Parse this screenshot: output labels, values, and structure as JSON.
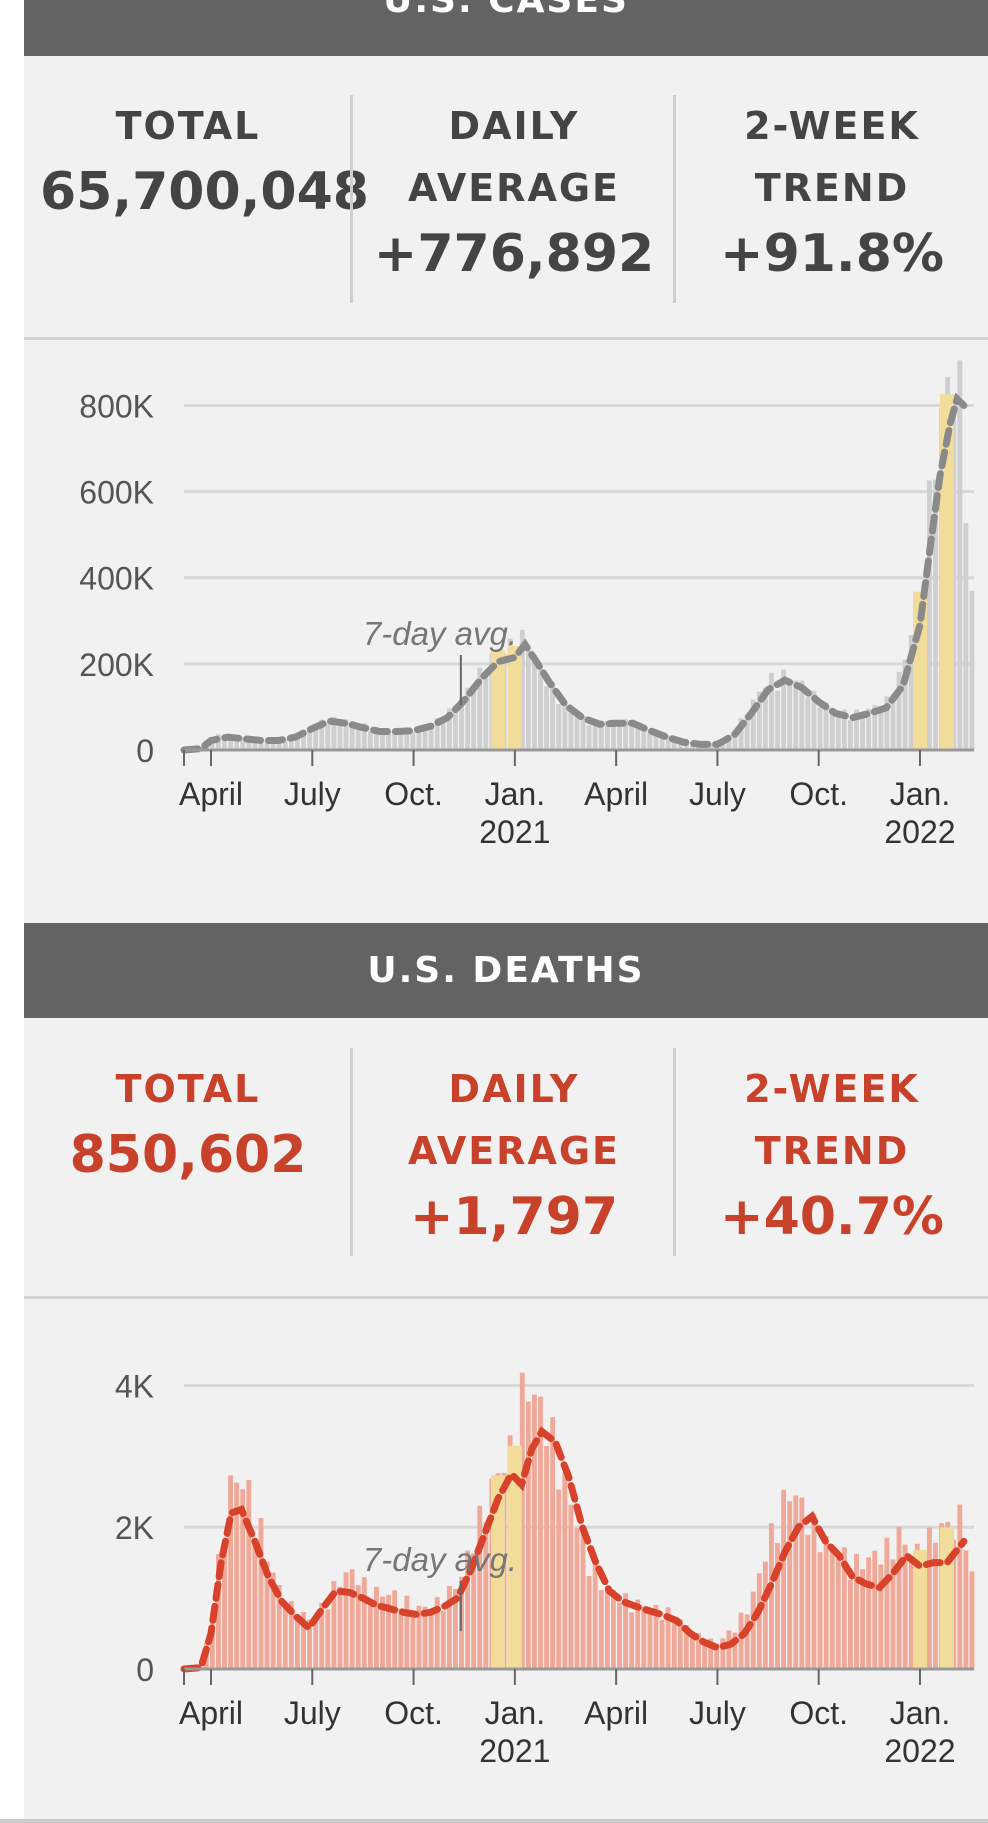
{
  "cases": {
    "header": "U.S. CASES",
    "total_label": "TOTAL",
    "total_value": "65,700,048",
    "daily_label_1": "DAILY",
    "daily_label_2": "AVERAGE",
    "daily_value": "+776,892",
    "trend_label_1": "2-WEEK",
    "trend_label_2": "TREND",
    "trend_value": "+91.8%"
  },
  "deaths": {
    "header": "U.S. DEATHS",
    "total_label": "TOTAL",
    "total_value": "850,602",
    "daily_label_1": "DAILY",
    "daily_label_2": "AVERAGE",
    "daily_value": "+1,797",
    "trend_label_1": "2-WEEK",
    "trend_label_2": "TREND",
    "trend_value": "+40.7%"
  },
  "colors": {
    "cases_bar": "#cfcfcf",
    "cases_line": "#8a8a8a",
    "deaths_bar": "#f0a898",
    "deaths_line": "#d8412a",
    "highlight": "#f2dc9a",
    "grid": "#d8d8d8",
    "axis": "#555555"
  },
  "chart_data": [
    {
      "type": "bar",
      "title": "",
      "annotation": "7-day avg.",
      "ylim": [
        0,
        880000
      ],
      "yticks": [
        0,
        200000,
        400000,
        600000,
        800000
      ],
      "ytick_labels": [
        "0",
        "200K",
        "400K",
        "600K",
        "800K"
      ],
      "x_ticks": [
        "April",
        "July",
        "Oct.",
        "Jan.",
        "April",
        "July",
        "Oct.",
        "Jan."
      ],
      "x_ticks_sub": [
        "",
        "",
        "",
        "2021",
        "",
        "",
        "",
        "2022"
      ],
      "x_range_months": [
        -0.8,
        22.6
      ],
      "x_tick_months": [
        0,
        3,
        6,
        9,
        12,
        15,
        18,
        21
      ],
      "series": [
        {
          "name": "daily",
          "kind": "bar",
          "points": [
            [
              -0.8,
              0
            ],
            [
              -0.4,
              2000
            ],
            [
              0,
              30000
            ],
            [
              0.5,
              33000
            ],
            [
              1,
              28000
            ],
            [
              1.5,
              24000
            ],
            [
              2,
              22000
            ],
            [
              2.5,
              30000
            ],
            [
              3,
              55000
            ],
            [
              3.5,
              68000
            ],
            [
              4,
              65000
            ],
            [
              4.5,
              55000
            ],
            [
              5,
              42000
            ],
            [
              5.5,
              44000
            ],
            [
              6,
              45000
            ],
            [
              6.5,
              55000
            ],
            [
              7,
              80000
            ],
            [
              7.5,
              120000
            ],
            [
              8,
              170000
            ],
            [
              8.5,
              220000
            ],
            [
              9,
              230000
            ],
            [
              9.3,
              250000
            ],
            [
              9.6,
              200000
            ],
            [
              10,
              150000
            ],
            [
              10.5,
              95000
            ],
            [
              11,
              70000
            ],
            [
              11.5,
              60000
            ],
            [
              12,
              65000
            ],
            [
              12.5,
              60000
            ],
            [
              13,
              45000
            ],
            [
              13.5,
              30000
            ],
            [
              14,
              18000
            ],
            [
              14.5,
              14000
            ],
            [
              15,
              15000
            ],
            [
              15.5,
              40000
            ],
            [
              16,
              100000
            ],
            [
              16.5,
              155000
            ],
            [
              17,
              165000
            ],
            [
              17.5,
              145000
            ],
            [
              18,
              110000
            ],
            [
              18.5,
              85000
            ],
            [
              19,
              80000
            ],
            [
              19.5,
              90000
            ],
            [
              20,
              105000
            ],
            [
              20.5,
              180000
            ],
            [
              21,
              350000
            ],
            [
              21.3,
              560000
            ],
            [
              21.6,
              720000
            ],
            [
              21.9,
              820000
            ],
            [
              22.1,
              860000
            ],
            [
              22.3,
              680000
            ],
            [
              22.6,
              240000
            ]
          ]
        },
        {
          "name": "7-day avg.",
          "kind": "line",
          "points": [
            [
              -0.8,
              0
            ],
            [
              -0.3,
              3000
            ],
            [
              0,
              22000
            ],
            [
              0.5,
              30000
            ],
            [
              1,
              26000
            ],
            [
              1.5,
              22000
            ],
            [
              2,
              22000
            ],
            [
              2.5,
              30000
            ],
            [
              3,
              50000
            ],
            [
              3.5,
              67000
            ],
            [
              4,
              62000
            ],
            [
              4.5,
              52000
            ],
            [
              5,
              43000
            ],
            [
              5.5,
              43000
            ],
            [
              6,
              45000
            ],
            [
              6.5,
              55000
            ],
            [
              7,
              75000
            ],
            [
              7.5,
              115000
            ],
            [
              8,
              165000
            ],
            [
              8.5,
              205000
            ],
            [
              9,
              215000
            ],
            [
              9.3,
              245000
            ],
            [
              9.6,
              210000
            ],
            [
              10,
              160000
            ],
            [
              10.5,
              105000
            ],
            [
              11,
              75000
            ],
            [
              11.5,
              60000
            ],
            [
              12,
              62000
            ],
            [
              12.5,
              62000
            ],
            [
              13,
              45000
            ],
            [
              13.5,
              30000
            ],
            [
              14,
              18000
            ],
            [
              14.5,
              13000
            ],
            [
              15,
              13000
            ],
            [
              15.5,
              35000
            ],
            [
              16,
              85000
            ],
            [
              16.5,
              140000
            ],
            [
              17,
              162000
            ],
            [
              17.5,
              145000
            ],
            [
              18,
              112000
            ],
            [
              18.5,
              85000
            ],
            [
              19,
              75000
            ],
            [
              19.5,
              85000
            ],
            [
              20,
              98000
            ],
            [
              20.5,
              150000
            ],
            [
              21,
              290000
            ],
            [
              21.3,
              470000
            ],
            [
              21.6,
              640000
            ],
            [
              21.9,
              760000
            ],
            [
              22.1,
              815000
            ],
            [
              22.3,
              800000
            ]
          ]
        }
      ]
    },
    {
      "type": "bar",
      "title": "",
      "annotation": "7-day avg.",
      "ylim": [
        0,
        4400
      ],
      "yticks": [
        0,
        2000,
        4000
      ],
      "ytick_labels": [
        "0",
        "2K",
        "4K"
      ],
      "x_ticks": [
        "April",
        "July",
        "Oct.",
        "Jan.",
        "April",
        "July",
        "Oct.",
        "Jan."
      ],
      "x_ticks_sub": [
        "",
        "",
        "",
        "2021",
        "",
        "",
        "",
        "2022"
      ],
      "x_range_months": [
        -0.8,
        22.6
      ],
      "x_tick_months": [
        0,
        3,
        6,
        9,
        12,
        15,
        18,
        21
      ],
      "series": [
        {
          "name": "daily",
          "kind": "bar",
          "points": [
            [
              -0.8,
              0
            ],
            [
              -0.3,
              30
            ],
            [
              0,
              600
            ],
            [
              0.3,
              1700
            ],
            [
              0.6,
              2500
            ],
            [
              1,
              2500
            ],
            [
              1.4,
              2000
            ],
            [
              1.8,
              1300
            ],
            [
              2.2,
              900
            ],
            [
              2.6,
              750
            ],
            [
              3,
              650
            ],
            [
              3.4,
              900
            ],
            [
              3.8,
              1200
            ],
            [
              4.2,
              1300
            ],
            [
              4.6,
              1100
            ],
            [
              5,
              1000
            ],
            [
              5.4,
              1000
            ],
            [
              5.8,
              900
            ],
            [
              6.2,
              800
            ],
            [
              6.6,
              850
            ],
            [
              7,
              1000
            ],
            [
              7.4,
              1200
            ],
            [
              7.8,
              1800
            ],
            [
              8.2,
              2300
            ],
            [
              8.6,
              2700
            ],
            [
              9,
              3000
            ],
            [
              9.3,
              3900
            ],
            [
              9.6,
              3600
            ],
            [
              10,
              3300
            ],
            [
              10.4,
              2600
            ],
            [
              10.8,
              2000
            ],
            [
              11.2,
              1500
            ],
            [
              11.6,
              1100
            ],
            [
              12,
              1000
            ],
            [
              12.4,
              900
            ],
            [
              12.8,
              850
            ],
            [
              13.2,
              800
            ],
            [
              13.6,
              750
            ],
            [
              14,
              600
            ],
            [
              14.5,
              420
            ],
            [
              15,
              350
            ],
            [
              15.5,
              550
            ],
            [
              16,
              900
            ],
            [
              16.4,
              1500
            ],
            [
              16.8,
              2100
            ],
            [
              17.2,
              2400
            ],
            [
              17.6,
              2100
            ],
            [
              18,
              1800
            ],
            [
              18.4,
              1600
            ],
            [
              18.8,
              1500
            ],
            [
              19.2,
              1400
            ],
            [
              19.6,
              1500
            ],
            [
              20,
              1600
            ],
            [
              20.4,
              1800
            ],
            [
              20.8,
              1500
            ],
            [
              21.2,
              1700
            ],
            [
              21.6,
              1900
            ],
            [
              22,
              1900
            ],
            [
              22.3,
              2100
            ],
            [
              22.6,
              1000
            ]
          ]
        },
        {
          "name": "7-day avg.",
          "kind": "line",
          "points": [
            [
              -0.8,
              0
            ],
            [
              -0.3,
              20
            ],
            [
              0,
              500
            ],
            [
              0.3,
              1500
            ],
            [
              0.6,
              2200
            ],
            [
              0.9,
              2250
            ],
            [
              1.3,
              1800
            ],
            [
              1.7,
              1300
            ],
            [
              2.1,
              950
            ],
            [
              2.5,
              750
            ],
            [
              2.9,
              580
            ],
            [
              3.3,
              850
            ],
            [
              3.7,
              1100
            ],
            [
              4.1,
              1080
            ],
            [
              4.5,
              1000
            ],
            [
              4.9,
              900
            ],
            [
              5.3,
              850
            ],
            [
              5.7,
              800
            ],
            [
              6.1,
              770
            ],
            [
              6.5,
              800
            ],
            [
              6.9,
              880
            ],
            [
              7.3,
              1000
            ],
            [
              7.7,
              1400
            ],
            [
              8.1,
              1900
            ],
            [
              8.5,
              2400
            ],
            [
              8.9,
              2750
            ],
            [
              9.2,
              2600
            ],
            [
              9.5,
              3100
            ],
            [
              9.8,
              3350
            ],
            [
              10.2,
              3200
            ],
            [
              10.6,
              2700
            ],
            [
              11,
              2000
            ],
            [
              11.4,
              1500
            ],
            [
              11.8,
              1100
            ],
            [
              12.2,
              950
            ],
            [
              12.6,
              880
            ],
            [
              13,
              820
            ],
            [
              13.4,
              760
            ],
            [
              13.8,
              680
            ],
            [
              14.2,
              500
            ],
            [
              14.6,
              380
            ],
            [
              15,
              300
            ],
            [
              15.4,
              350
            ],
            [
              15.8,
              500
            ],
            [
              16.2,
              800
            ],
            [
              16.6,
              1200
            ],
            [
              17,
              1650
            ],
            [
              17.4,
              2000
            ],
            [
              17.8,
              2150
            ],
            [
              18.2,
              1800
            ],
            [
              18.6,
              1600
            ],
            [
              19,
              1300
            ],
            [
              19.4,
              1200
            ],
            [
              19.8,
              1150
            ],
            [
              20.2,
              1350
            ],
            [
              20.6,
              1600
            ],
            [
              21,
              1450
            ],
            [
              21.4,
              1500
            ],
            [
              21.8,
              1500
            ],
            [
              22.3,
              1800
            ]
          ]
        }
      ]
    }
  ]
}
